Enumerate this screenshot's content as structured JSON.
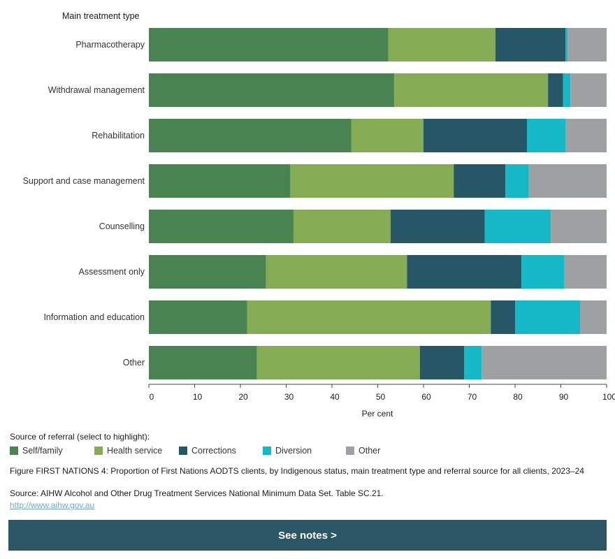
{
  "chart_data": {
    "type": "bar",
    "orientation": "horizontal",
    "stacked": true,
    "y_axis_title": "Main treatment type",
    "xlabel": "Per cent",
    "xlim": [
      0,
      100
    ],
    "x_ticks": [
      "0",
      "10",
      "20",
      "30",
      "40",
      "50",
      "60",
      "70",
      "80",
      "90",
      "100"
    ],
    "categories": [
      "Pharmacotherapy",
      "Withdrawal management",
      "Rehabilitation",
      "Support and case management",
      "Counselling",
      "Assessment only",
      "Information and education",
      "Other"
    ],
    "series": [
      {
        "name": "Self/family",
        "color": "#4a8352",
        "values": [
          52.3,
          53.6,
          44.2,
          30.9,
          31.6,
          25.6,
          21.5,
          23.6
        ]
      },
      {
        "name": "Health service",
        "color": "#86ab55",
        "values": [
          23.4,
          33.6,
          15.8,
          35.7,
          21.2,
          30.8,
          53.2,
          35.6
        ]
      },
      {
        "name": "Corrections",
        "color": "#275766",
        "values": [
          15.3,
          3.3,
          22.6,
          11.3,
          20.6,
          25.0,
          5.3,
          9.7
        ]
      },
      {
        "name": "Diversion",
        "color": "#15b8c7",
        "values": [
          0.5,
          1.6,
          8.5,
          5.1,
          14.4,
          9.4,
          14.2,
          3.8
        ]
      },
      {
        "name": "Other",
        "color": "#9ea1a2",
        "values": [
          8.5,
          7.9,
          8.9,
          17.0,
          12.2,
          9.2,
          5.8,
          27.3
        ]
      }
    ],
    "legend_title": "Source of referral (select to highlight):",
    "legend_position": "bottom-left"
  },
  "caption": "Figure FIRST NATIONS 4: Proportion of First Nations AODTS clients, by Indigenous status, main treatment type and referral source for all clients, 2023–24",
  "source": "Source: AIHW Alcohol and Other Drug Treatment Services National Minimum Data Set. Table SC.21.",
  "link_text": "http://www.aihw.gov.au",
  "notes_button": "See notes >"
}
